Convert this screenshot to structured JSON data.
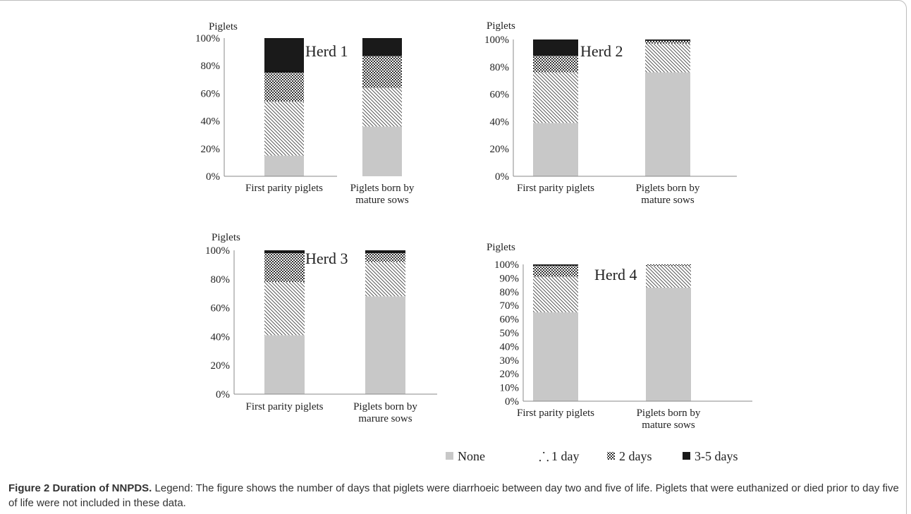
{
  "chart_data": [
    {
      "type": "stacked-bar-100",
      "ylabel": "Piglets",
      "annotation": "Herd 1",
      "categories": [
        "First parity piglets",
        "Piglets born by mature sows"
      ],
      "yticks": [
        "0%",
        "20%",
        "40%",
        "60%",
        "80%",
        "100%"
      ],
      "ylim": [
        0,
        100
      ],
      "series": [
        {
          "name": "None",
          "values": [
            15,
            36
          ]
        },
        {
          "name": "1 day",
          "values": [
            39,
            28
          ]
        },
        {
          "name": "2 days",
          "values": [
            21,
            23
          ]
        },
        {
          "name": "3-5 days",
          "values": [
            25,
            13
          ]
        }
      ]
    },
    {
      "type": "stacked-bar-100",
      "ylabel": "Piglets",
      "annotation": "Herd 2",
      "categories": [
        "First parity piglets",
        "Piglets born by mature sows"
      ],
      "yticks": [
        "0%",
        "20%",
        "40%",
        "60%",
        "80%",
        "100%"
      ],
      "ylim": [
        0,
        100
      ],
      "series": [
        {
          "name": "None",
          "values": [
            39,
            76
          ]
        },
        {
          "name": "1 day",
          "values": [
            37,
            21
          ]
        },
        {
          "name": "2 days",
          "values": [
            12,
            2
          ]
        },
        {
          "name": "3-5 days",
          "values": [
            12,
            1
          ]
        }
      ]
    },
    {
      "type": "stacked-bar-100",
      "ylabel": "Piglets",
      "annotation": "Herd 3",
      "categories": [
        "First parity piglets",
        "Piglets born by marure sows"
      ],
      "yticks": [
        "0%",
        "20%",
        "40%",
        "60%",
        "80%",
        "100%"
      ],
      "ylim": [
        0,
        100
      ],
      "series": [
        {
          "name": "None",
          "values": [
            41,
            68
          ]
        },
        {
          "name": "1 day",
          "values": [
            37,
            24
          ]
        },
        {
          "name": "2 days",
          "values": [
            20,
            6
          ]
        },
        {
          "name": "3-5 days",
          "values": [
            2,
            2
          ]
        }
      ]
    },
    {
      "type": "stacked-bar-100",
      "ylabel": "Piglets",
      "annotation": "Herd 4",
      "categories": [
        "First parity piglets",
        "Piglets born by mature sows"
      ],
      "yticks": [
        "0%",
        "10%",
        "20%",
        "30%",
        "40%",
        "50%",
        "60%",
        "70%",
        "80%",
        "90%",
        "100%"
      ],
      "ylim": [
        0,
        100
      ],
      "series": [
        {
          "name": "None",
          "values": [
            65,
            83
          ]
        },
        {
          "name": "1 day",
          "values": [
            26,
            16
          ]
        },
        {
          "name": "2 days",
          "values": [
            8,
            1
          ]
        },
        {
          "name": "3-5 days",
          "values": [
            1,
            0
          ]
        }
      ]
    }
  ],
  "legend": {
    "placement": "bottom-right",
    "items": [
      "None",
      "1 day",
      "2 days",
      "3-5 days"
    ]
  },
  "colors": {
    "none": "#c8c8c8",
    "one_day": "#555555",
    "two_days": "#333333",
    "three_five_days": "#1a1a1a"
  },
  "caption": {
    "lead": "Figure 2 Duration of NNPDS.",
    "text": " Legend: The figure shows the number of days that piglets were diarrhoeic between day two and five of life. Piglets that were euthanized or died prior to day five of life were not included in these data."
  }
}
